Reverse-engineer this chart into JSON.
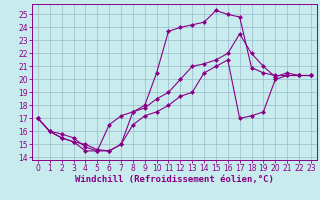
{
  "xlabel": "Windchill (Refroidissement éolien,°C)",
  "bg_color": "#c8ecee",
  "grid_color": "#99bbcc",
  "line_color": "#880088",
  "xlim": [
    -0.5,
    23.5
  ],
  "ylim": [
    13.8,
    25.8
  ],
  "xticks": [
    0,
    1,
    2,
    3,
    4,
    5,
    6,
    7,
    8,
    9,
    10,
    11,
    12,
    13,
    14,
    15,
    16,
    17,
    18,
    19,
    20,
    21,
    22,
    23
  ],
  "yticks": [
    14,
    15,
    16,
    17,
    18,
    19,
    20,
    21,
    22,
    23,
    24,
    25
  ],
  "curve1_x": [
    0,
    1,
    2,
    3,
    4,
    5,
    6,
    7,
    8,
    9,
    10,
    11,
    12,
    13,
    14,
    15,
    16,
    17,
    18,
    19,
    20,
    21,
    22,
    23
  ],
  "curve1_y": [
    17.0,
    16.0,
    15.5,
    15.2,
    15.0,
    14.6,
    14.5,
    15.0,
    16.5,
    17.2,
    17.5,
    18.0,
    18.7,
    19.0,
    20.5,
    21.0,
    21.5,
    17.0,
    17.2,
    17.5,
    20.0,
    20.3,
    20.3,
    20.3
  ],
  "curve2_x": [
    0,
    1,
    2,
    3,
    4,
    5,
    6,
    7,
    8,
    9,
    10,
    11,
    12,
    13,
    14,
    15,
    16,
    17,
    18,
    19,
    20,
    21,
    22,
    23
  ],
  "curve2_y": [
    17.0,
    16.0,
    15.5,
    15.2,
    14.5,
    14.5,
    14.5,
    15.0,
    17.5,
    18.0,
    20.5,
    23.7,
    24.0,
    24.2,
    24.4,
    25.3,
    25.0,
    24.8,
    20.9,
    20.5,
    20.3,
    20.3,
    20.3,
    20.3
  ],
  "curve3_x": [
    0,
    1,
    2,
    3,
    4,
    5,
    6,
    7,
    8,
    9,
    10,
    11,
    12,
    13,
    14,
    15,
    16,
    17,
    18,
    19,
    20,
    21,
    22,
    23
  ],
  "curve3_y": [
    17.0,
    16.0,
    15.8,
    15.5,
    14.8,
    14.5,
    16.5,
    17.2,
    17.5,
    17.8,
    18.5,
    19.0,
    20.0,
    21.0,
    21.2,
    21.5,
    22.0,
    23.5,
    22.0,
    21.0,
    20.2,
    20.5,
    20.3,
    20.3
  ],
  "tick_fontsize": 5.5,
  "xlabel_fontsize": 6.5
}
